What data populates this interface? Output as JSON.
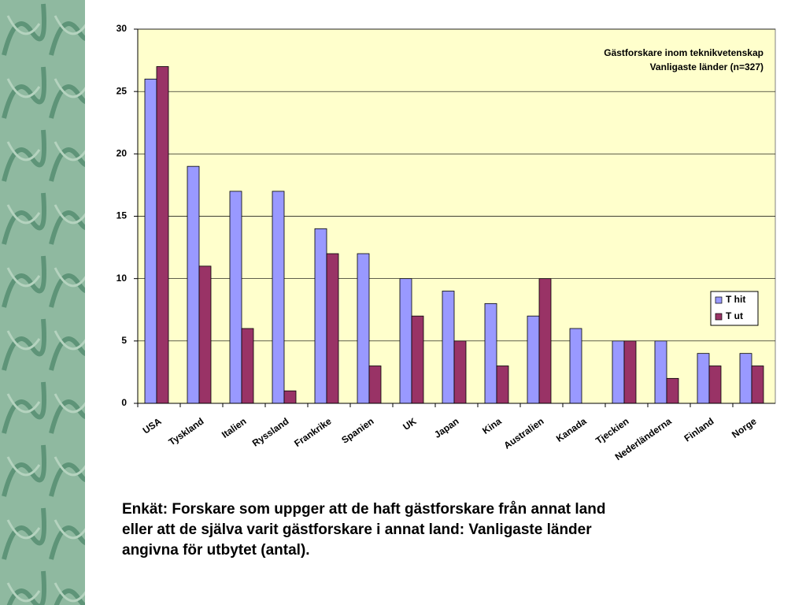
{
  "chart_data": {
    "type": "bar",
    "title": [
      "Gästforskare inom teknikvetenskap",
      "Vanligaste länder (n=327)"
    ],
    "categories": [
      "USA",
      "Tyskland",
      "Italien",
      "Ryssland",
      "Frankrike",
      "Spanien",
      "UK",
      "Japan",
      "Kina",
      "Australien",
      "Kanada",
      "Tjeckien",
      "Nederländerna",
      "Finland",
      "Norge"
    ],
    "series": [
      {
        "name": "T hit",
        "color": "#9999ff",
        "values": [
          26,
          19,
          17,
          17,
          14,
          12,
          10,
          9,
          8,
          7,
          6,
          5,
          5,
          4,
          4
        ]
      },
      {
        "name": "T ut",
        "color": "#993366",
        "values": [
          27,
          11,
          6,
          1,
          12,
          3,
          7,
          5,
          3,
          10,
          null,
          5,
          2,
          3,
          3
        ]
      }
    ],
    "ylim": [
      0,
      30
    ],
    "yticks": [
      0,
      5,
      10,
      15,
      20,
      25,
      30
    ],
    "grid": true,
    "legend": "right"
  },
  "caption": [
    "Enkät: Forskare som uppger att de haft gästforskare från annat land",
    "eller att de själva varit gästforskare i annat land: Vanligaste länder",
    "angivna för utbytet (antal)."
  ]
}
